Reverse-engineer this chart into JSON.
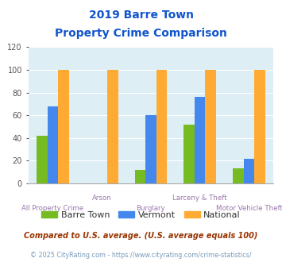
{
  "title_line1": "2019 Barre Town",
  "title_line2": "Property Crime Comparison",
  "categories": [
    "All Property Crime",
    "Arson",
    "Burglary",
    "Larceny & Theft",
    "Motor Vehicle Theft"
  ],
  "barre_town": [
    42,
    0,
    12,
    52,
    13
  ],
  "vermont": [
    68,
    0,
    60,
    76,
    22
  ],
  "national": [
    100,
    100,
    100,
    100,
    100
  ],
  "color_barre": "#77bb22",
  "color_vermont": "#4488ee",
  "color_national": "#ffaa33",
  "ylim": [
    0,
    120
  ],
  "yticks": [
    0,
    20,
    40,
    60,
    80,
    100,
    120
  ],
  "bg_color": "#ddeef5",
  "title_color": "#1155cc",
  "footnote1": "Compared to U.S. average. (U.S. average equals 100)",
  "footnote2": "© 2025 CityRating.com - https://www.cityrating.com/crime-statistics/",
  "footnote1_color": "#993300",
  "footnote2_color": "#7799bb",
  "xlabel_color": "#9977aa",
  "legend_text_color": "#333333",
  "bar_width": 0.22
}
